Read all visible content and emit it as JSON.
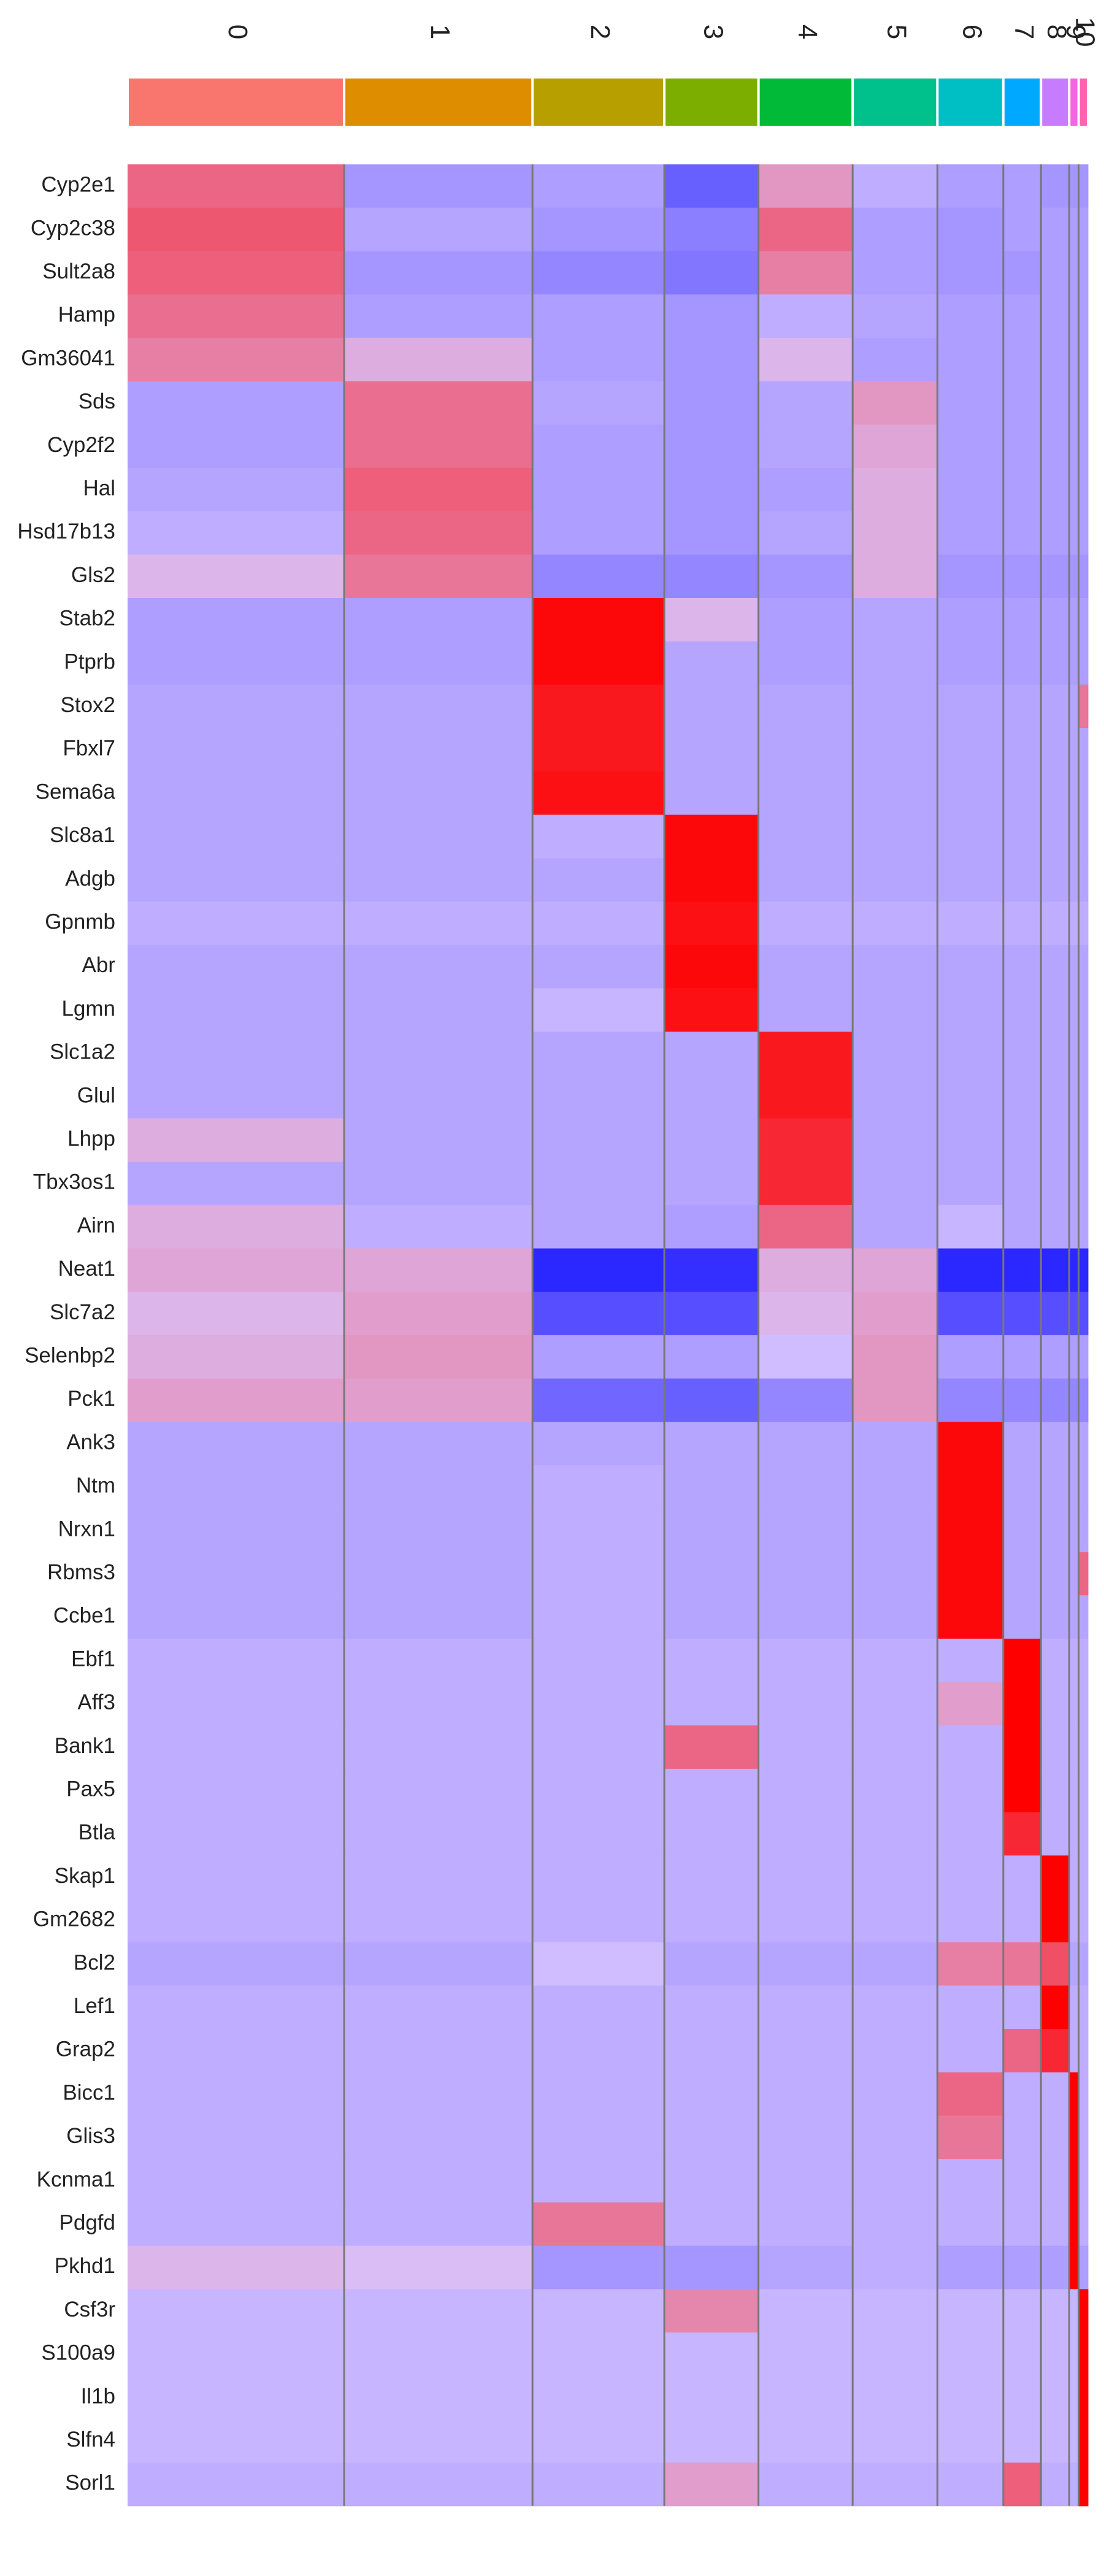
{
  "chart_data": {
    "type": "heatmap",
    "title": "",
    "xlabel": "",
    "ylabel": "",
    "clusters": [
      {
        "label": "0",
        "color": "#F8766D",
        "cells": 23
      },
      {
        "label": "1",
        "color": "#DE8C00",
        "cells": 20
      },
      {
        "label": "2",
        "color": "#B79F00",
        "cells": 14
      },
      {
        "label": "3",
        "color": "#7CAE00",
        "cells": 10
      },
      {
        "label": "4",
        "color": "#00BA38",
        "cells": 10
      },
      {
        "label": "5",
        "color": "#00C08B",
        "cells": 9
      },
      {
        "label": "6",
        "color": "#00BFC4",
        "cells": 7
      },
      {
        "label": "7",
        "color": "#00A9FF",
        "cells": 4
      },
      {
        "label": "8",
        "color": "#C77CFF",
        "cells": 3
      },
      {
        "label": "9",
        "color": "#F564E3",
        "cells": 1
      },
      {
        "label": "10",
        "color": "#FF64B0",
        "cells": 1
      }
    ],
    "genes": [
      {
        "name": "Cyp2e1",
        "values": [
          1.2,
          -0.6,
          -0.5,
          -1.3,
          0.6,
          -0.3,
          -0.5,
          -0.5,
          -0.6,
          -0.6,
          -0.6
        ]
      },
      {
        "name": "Cyp2c38",
        "values": [
          1.4,
          -0.4,
          -0.6,
          -0.9,
          1.2,
          -0.5,
          -0.6,
          -0.5,
          -0.5,
          -0.5,
          -0.5
        ]
      },
      {
        "name": "Sult2a8",
        "values": [
          1.3,
          -0.6,
          -0.8,
          -1.0,
          0.9,
          -0.5,
          -0.6,
          -0.6,
          -0.5,
          -0.5,
          -0.5
        ]
      },
      {
        "name": "Hamp",
        "values": [
          1.1,
          -0.5,
          -0.5,
          -0.6,
          -0.3,
          -0.4,
          -0.5,
          -0.5,
          -0.5,
          -0.5,
          -0.5
        ]
      },
      {
        "name": "Gm36041",
        "values": [
          0.9,
          0.3,
          -0.5,
          -0.6,
          0.2,
          -0.5,
          -0.5,
          -0.5,
          -0.5,
          -0.5,
          -0.5
        ]
      },
      {
        "name": "Sds",
        "values": [
          -0.5,
          1.1,
          -0.4,
          -0.6,
          -0.4,
          0.6,
          -0.5,
          -0.5,
          -0.5,
          -0.5,
          -0.5
        ]
      },
      {
        "name": "Cyp2f2",
        "values": [
          -0.5,
          1.1,
          -0.5,
          -0.6,
          -0.4,
          0.4,
          -0.5,
          -0.5,
          -0.5,
          -0.5,
          -0.5
        ]
      },
      {
        "name": "Hal",
        "values": [
          -0.4,
          1.3,
          -0.5,
          -0.6,
          -0.5,
          0.3,
          -0.5,
          -0.5,
          -0.5,
          -0.5,
          -0.5
        ]
      },
      {
        "name": "Hsd17b13",
        "values": [
          -0.3,
          1.2,
          -0.5,
          -0.6,
          -0.4,
          0.3,
          -0.5,
          -0.5,
          -0.5,
          -0.5,
          -0.5
        ]
      },
      {
        "name": "Gls2",
        "values": [
          0.2,
          1.0,
          -0.8,
          -0.8,
          -0.6,
          0.3,
          -0.6,
          -0.6,
          -0.6,
          -0.6,
          -0.6
        ]
      },
      {
        "name": "Stab2",
        "values": [
          -0.5,
          -0.5,
          2.4,
          0.2,
          -0.5,
          -0.4,
          -0.5,
          -0.5,
          -0.5,
          -0.5,
          -0.5
        ]
      },
      {
        "name": "Ptprb",
        "values": [
          -0.5,
          -0.5,
          2.4,
          -0.4,
          -0.5,
          -0.4,
          -0.5,
          -0.5,
          -0.5,
          -0.5,
          -0.5
        ]
      },
      {
        "name": "Stox2",
        "values": [
          -0.4,
          -0.4,
          2.2,
          -0.4,
          -0.4,
          -0.4,
          -0.4,
          -0.4,
          -0.4,
          -0.4,
          1.0
        ]
      },
      {
        "name": "Fbxl7",
        "values": [
          -0.4,
          -0.4,
          2.2,
          -0.4,
          -0.4,
          -0.4,
          -0.4,
          -0.4,
          -0.4,
          -0.4,
          -0.4
        ]
      },
      {
        "name": "Sema6a",
        "values": [
          -0.4,
          -0.4,
          2.3,
          -0.4,
          -0.4,
          -0.4,
          -0.4,
          -0.4,
          -0.4,
          -0.4,
          -0.4
        ]
      },
      {
        "name": "Slc8a1",
        "values": [
          -0.4,
          -0.4,
          -0.3,
          2.4,
          -0.4,
          -0.4,
          -0.4,
          -0.4,
          -0.4,
          -0.4,
          -0.4
        ]
      },
      {
        "name": "Adgb",
        "values": [
          -0.4,
          -0.4,
          -0.4,
          2.4,
          -0.4,
          -0.4,
          -0.4,
          -0.4,
          -0.4,
          -0.4,
          -0.4
        ]
      },
      {
        "name": "Gpnmb",
        "values": [
          -0.3,
          -0.3,
          -0.3,
          2.3,
          -0.3,
          -0.3,
          -0.3,
          -0.3,
          -0.3,
          -0.3,
          -0.3
        ]
      },
      {
        "name": "Abr",
        "values": [
          -0.4,
          -0.4,
          -0.4,
          2.4,
          -0.4,
          -0.4,
          -0.4,
          -0.4,
          -0.4,
          -0.4,
          -0.4
        ]
      },
      {
        "name": "Lgmn",
        "values": [
          -0.4,
          -0.4,
          -0.2,
          2.3,
          -0.4,
          -0.4,
          -0.4,
          -0.4,
          -0.4,
          -0.4,
          -0.4
        ]
      },
      {
        "name": "Slc1a2",
        "values": [
          -0.4,
          -0.4,
          -0.4,
          -0.4,
          2.2,
          -0.4,
          -0.4,
          -0.4,
          -0.4,
          -0.4,
          -0.4
        ]
      },
      {
        "name": "Glul",
        "values": [
          -0.4,
          -0.4,
          -0.4,
          -0.4,
          2.2,
          -0.4,
          -0.4,
          -0.4,
          -0.4,
          -0.4,
          -0.4
        ]
      },
      {
        "name": "Lhpp",
        "values": [
          0.3,
          -0.4,
          -0.4,
          -0.4,
          2.0,
          -0.4,
          -0.4,
          -0.4,
          -0.4,
          -0.4,
          -0.4
        ]
      },
      {
        "name": "Tbx3os1",
        "values": [
          -0.4,
          -0.4,
          -0.4,
          -0.4,
          2.0,
          -0.4,
          -0.4,
          -0.4,
          -0.4,
          -0.4,
          -0.4
        ]
      },
      {
        "name": "Airn",
        "values": [
          0.3,
          -0.3,
          -0.4,
          -0.5,
          1.2,
          -0.4,
          -0.2,
          -0.4,
          -0.4,
          -0.4,
          -0.4
        ]
      },
      {
        "name": "Neat1",
        "values": [
          0.4,
          0.4,
          -2.0,
          -1.9,
          0.3,
          0.4,
          -2.0,
          -2.0,
          -2.0,
          -2.0,
          -2.0
        ]
      },
      {
        "name": "Slc7a2",
        "values": [
          0.2,
          0.5,
          -1.5,
          -1.5,
          0.2,
          0.5,
          -1.5,
          -1.5,
          -1.5,
          -1.5,
          -1.5
        ]
      },
      {
        "name": "Selenbp2",
        "values": [
          0.3,
          0.6,
          -0.5,
          -0.5,
          -0.1,
          0.6,
          -0.5,
          -0.5,
          -0.5,
          -0.5,
          -0.5
        ]
      },
      {
        "name": "Pck1",
        "values": [
          0.5,
          0.5,
          -1.2,
          -1.3,
          -0.8,
          0.6,
          -0.8,
          -0.8,
          -0.8,
          -0.8,
          -0.8
        ]
      },
      {
        "name": "Ank3",
        "values": [
          -0.4,
          -0.4,
          -0.4,
          -0.4,
          -0.4,
          -0.4,
          2.4,
          -0.4,
          -0.4,
          -0.4,
          -0.4
        ]
      },
      {
        "name": "Ntm",
        "values": [
          -0.4,
          -0.4,
          -0.3,
          -0.4,
          -0.4,
          -0.4,
          2.4,
          -0.4,
          -0.4,
          -0.4,
          -0.4
        ]
      },
      {
        "name": "Nrxn1",
        "values": [
          -0.4,
          -0.4,
          -0.3,
          -0.4,
          -0.4,
          -0.4,
          2.4,
          -0.4,
          -0.4,
          -0.4,
          -0.4
        ]
      },
      {
        "name": "Rbms3",
        "values": [
          -0.4,
          -0.4,
          -0.3,
          -0.4,
          -0.4,
          -0.4,
          2.4,
          -0.4,
          -0.4,
          -0.4,
          1.2
        ]
      },
      {
        "name": "Ccbe1",
        "values": [
          -0.4,
          -0.4,
          -0.3,
          -0.4,
          -0.4,
          -0.4,
          2.4,
          -0.4,
          -0.4,
          -0.4,
          -0.4
        ]
      },
      {
        "name": "Ebf1",
        "values": [
          -0.3,
          -0.3,
          -0.3,
          -0.3,
          -0.3,
          -0.3,
          -0.3,
          2.5,
          -0.3,
          -0.3,
          -0.3
        ]
      },
      {
        "name": "Aff3",
        "values": [
          -0.3,
          -0.3,
          -0.3,
          -0.3,
          -0.3,
          -0.3,
          0.5,
          2.5,
          -0.3,
          -0.3,
          -0.3
        ]
      },
      {
        "name": "Bank1",
        "values": [
          -0.3,
          -0.3,
          -0.3,
          1.2,
          -0.3,
          -0.3,
          -0.3,
          2.5,
          -0.3,
          -0.3,
          -0.3
        ]
      },
      {
        "name": "Pax5",
        "values": [
          -0.3,
          -0.3,
          -0.3,
          -0.3,
          -0.3,
          -0.3,
          -0.3,
          2.5,
          -0.3,
          -0.3,
          -0.3
        ]
      },
      {
        "name": "Btla",
        "values": [
          -0.3,
          -0.3,
          -0.3,
          -0.3,
          -0.3,
          -0.3,
          -0.3,
          2.0,
          -0.3,
          -0.3,
          -0.3
        ]
      },
      {
        "name": "Skap1",
        "values": [
          -0.3,
          -0.3,
          -0.3,
          -0.3,
          -0.3,
          -0.3,
          -0.3,
          -0.3,
          2.5,
          -0.3,
          -0.3
        ]
      },
      {
        "name": "Gm2682",
        "values": [
          -0.3,
          -0.3,
          -0.3,
          -0.3,
          -0.3,
          -0.3,
          -0.3,
          -0.3,
          2.5,
          -0.3,
          -0.3
        ]
      },
      {
        "name": "Bcl2",
        "values": [
          -0.4,
          -0.4,
          -0.1,
          -0.4,
          -0.4,
          -0.4,
          0.9,
          1.0,
          1.5,
          -0.4,
          -0.4
        ]
      },
      {
        "name": "Lef1",
        "values": [
          -0.3,
          -0.3,
          -0.3,
          -0.3,
          -0.3,
          -0.3,
          -0.3,
          -0.3,
          2.5,
          -0.3,
          -0.3
        ]
      },
      {
        "name": "Grap2",
        "values": [
          -0.3,
          -0.3,
          -0.3,
          -0.3,
          -0.3,
          -0.3,
          -0.3,
          1.2,
          2.0,
          -0.3,
          -0.3
        ]
      },
      {
        "name": "Bicc1",
        "values": [
          -0.3,
          -0.3,
          -0.3,
          -0.3,
          -0.3,
          -0.3,
          1.2,
          -0.3,
          -0.3,
          2.5,
          -0.3
        ]
      },
      {
        "name": "Glis3",
        "values": [
          -0.3,
          -0.3,
          -0.3,
          -0.3,
          -0.3,
          -0.3,
          1.0,
          -0.3,
          -0.3,
          2.5,
          -0.3
        ]
      },
      {
        "name": "Kcnma1",
        "values": [
          -0.3,
          -0.3,
          -0.3,
          -0.3,
          -0.3,
          -0.3,
          -0.3,
          -0.3,
          -0.3,
          2.5,
          -0.3
        ]
      },
      {
        "name": "Pdgfd",
        "values": [
          -0.3,
          -0.3,
          1.0,
          -0.3,
          -0.3,
          -0.3,
          -0.3,
          -0.3,
          -0.3,
          2.5,
          -0.3
        ]
      },
      {
        "name": "Pkhd1",
        "values": [
          0.2,
          0.1,
          -0.6,
          -0.6,
          -0.4,
          -0.3,
          -0.5,
          -0.5,
          -0.5,
          2.5,
          -0.5
        ]
      },
      {
        "name": "Csf3r",
        "values": [
          -0.2,
          -0.2,
          -0.2,
          0.8,
          -0.2,
          -0.2,
          -0.2,
          -0.2,
          -0.2,
          -0.2,
          2.5
        ]
      },
      {
        "name": "S100a9",
        "values": [
          -0.2,
          -0.2,
          -0.2,
          -0.2,
          -0.2,
          -0.2,
          -0.2,
          -0.2,
          -0.2,
          -0.2,
          2.5
        ]
      },
      {
        "name": "Il1b",
        "values": [
          -0.2,
          -0.2,
          -0.2,
          -0.2,
          -0.2,
          -0.2,
          -0.2,
          -0.2,
          -0.2,
          -0.2,
          2.5
        ]
      },
      {
        "name": "Slfn4",
        "values": [
          -0.2,
          -0.2,
          -0.2,
          -0.2,
          -0.2,
          -0.2,
          -0.2,
          -0.2,
          -0.2,
          -0.2,
          2.5
        ]
      },
      {
        "name": "Sorl1",
        "values": [
          -0.3,
          -0.3,
          -0.3,
          0.5,
          -0.3,
          -0.3,
          -0.3,
          1.3,
          -0.3,
          -0.3,
          2.5
        ]
      }
    ],
    "color_scale": {
      "low": "#0000FF",
      "mid": "#D9C5FF",
      "high": "#FF0000",
      "min": -2.5,
      "max": 2.5
    },
    "legend": "none"
  }
}
